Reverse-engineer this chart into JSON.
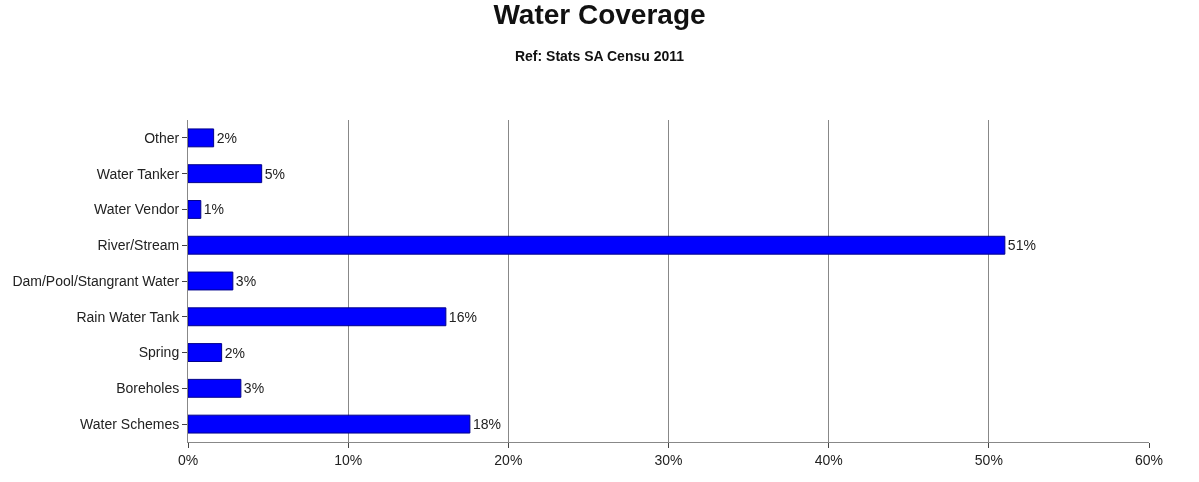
{
  "chart_data": {
    "type": "bar",
    "orientation": "horizontal",
    "title": "Water Coverage",
    "subtitle": "Ref: Stats SA Censu 2011",
    "categories": [
      "Other",
      "Water Tanker",
      "Water Vendor",
      "River/Stream",
      "Dam/Pool/Stangrant Water",
      "Rain Water Tank",
      "Spring",
      "Boreholes",
      "Water Schemes"
    ],
    "values": [
      1.6,
      4.6,
      0.8,
      51,
      2.8,
      16.1,
      2.1,
      3.3,
      17.6
    ],
    "value_labels": [
      "2%",
      "5%",
      "1%",
      "51%",
      "3%",
      "16%",
      "2%",
      "3%",
      "18%"
    ],
    "color": "#0000ff",
    "xlim": [
      0,
      60
    ],
    "xticks": [
      {
        "value": 0,
        "label": "0%"
      },
      {
        "value": 10,
        "label": "10%"
      },
      {
        "value": 20,
        "label": "20%"
      },
      {
        "value": 30,
        "label": "30%"
      },
      {
        "value": 40,
        "label": "40%"
      },
      {
        "value": 50,
        "label": "50%"
      },
      {
        "value": 60,
        "label": "60%"
      }
    ],
    "grid": "x",
    "legend": false
  }
}
